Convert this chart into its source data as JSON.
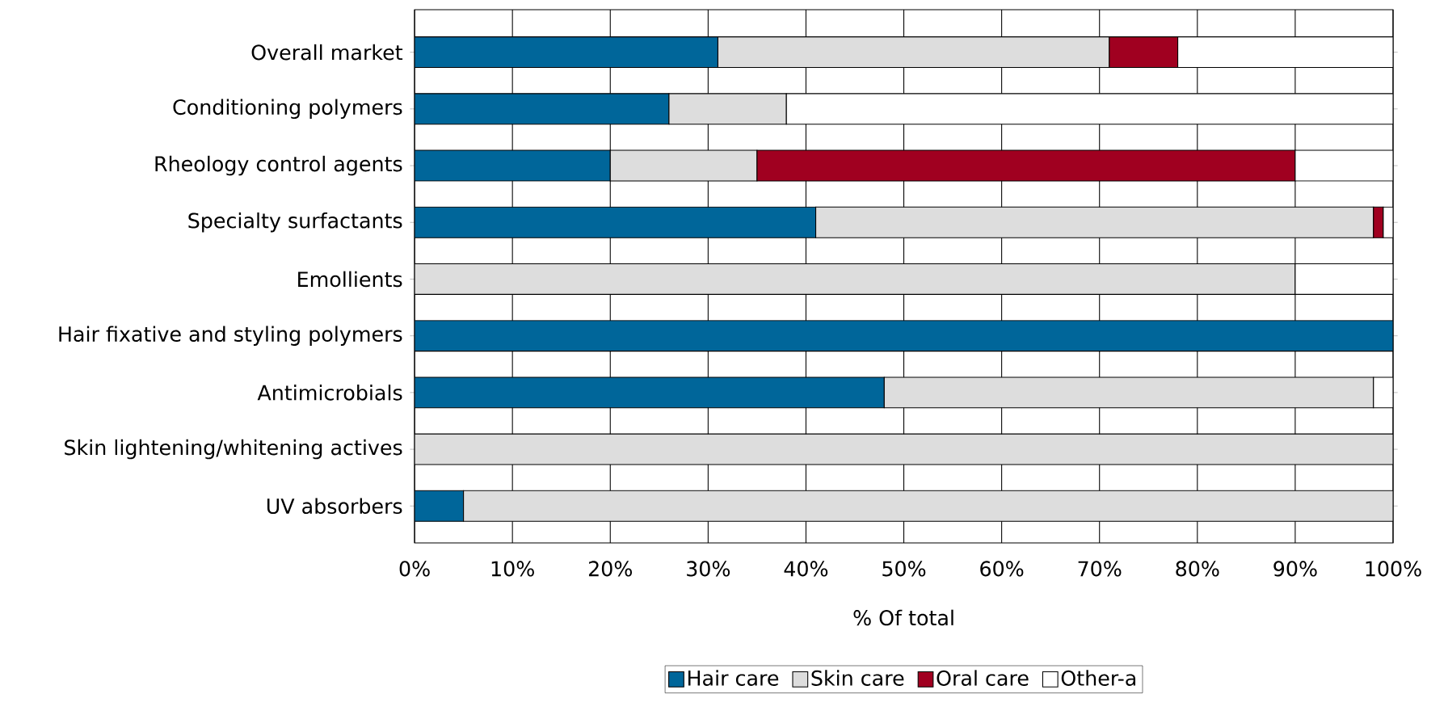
{
  "chart_data": {
    "type": "bar",
    "orientation": "horizontal",
    "stacked": true,
    "xlabel": "% Of total",
    "categories": [
      "Overall market",
      "Conditioning polymers",
      "Rheology control agents",
      "Specialty surfactants",
      "Emollients",
      "Hair fixative and styling polymers",
      "Antimicrobials",
      "Skin lightening/whitening actives",
      "UV absorbers"
    ],
    "series": [
      {
        "name": "Hair care",
        "color": "#00669a",
        "values": [
          31,
          26,
          20,
          41,
          0,
          100,
          48,
          0,
          5
        ]
      },
      {
        "name": "Skin care",
        "color": "#dddddd",
        "values": [
          40,
          12,
          15,
          57,
          90,
          0,
          50,
          100,
          95
        ]
      },
      {
        "name": "Oral care",
        "color": "#a00020",
        "values": [
          7,
          0,
          55,
          1,
          0,
          0,
          0,
          0,
          0
        ]
      },
      {
        "name": "Other-a",
        "color": "#ffffff",
        "values": [
          22,
          62,
          10,
          1,
          10,
          0,
          2,
          0,
          0
        ]
      }
    ],
    "xlim": [
      0,
      100
    ],
    "xticks": [
      {
        "value": 0,
        "label": "0%"
      },
      {
        "value": 10,
        "label": "10%"
      },
      {
        "value": 20,
        "label": "20%"
      },
      {
        "value": 30,
        "label": "30%"
      },
      {
        "value": 40,
        "label": "40%"
      },
      {
        "value": 50,
        "label": "50%"
      },
      {
        "value": 60,
        "label": "60%"
      },
      {
        "value": 70,
        "label": "70%"
      },
      {
        "value": 80,
        "label": "80%"
      },
      {
        "value": 90,
        "label": "90%"
      },
      {
        "value": 100,
        "label": "100%"
      }
    ],
    "grid": "x",
    "legend": "bottom"
  }
}
